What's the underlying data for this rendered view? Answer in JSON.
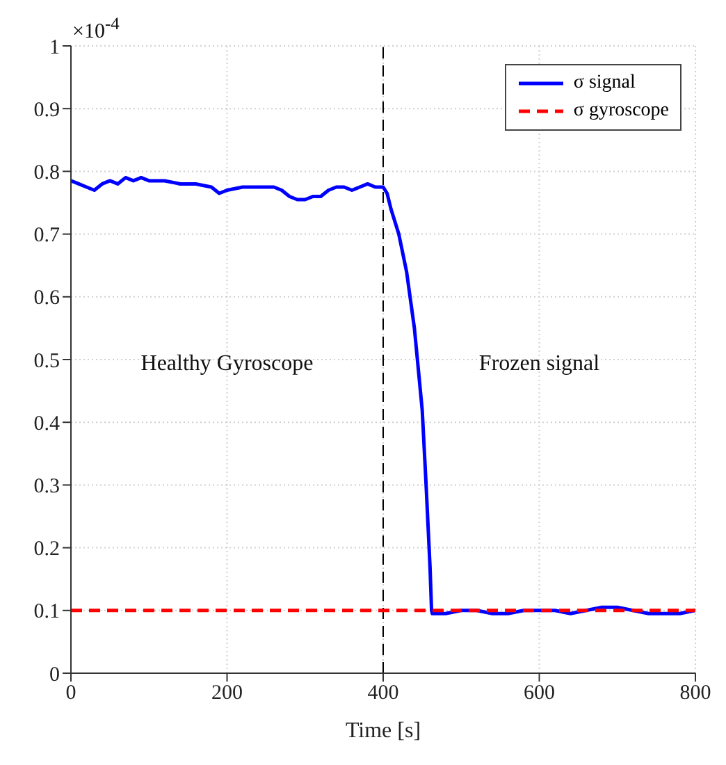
{
  "chart_data": {
    "type": "line",
    "xlabel": "Time [s]",
    "xlim": [
      0,
      800
    ],
    "xticks": [
      0,
      200,
      400,
      600,
      800
    ],
    "ylim": [
      0,
      1
    ],
    "yticks": [
      0,
      0.1,
      0.2,
      0.3,
      0.4,
      0.5,
      0.6,
      0.7,
      0.8,
      0.9,
      1
    ],
    "grid": true,
    "legend": "top right",
    "marker": "none",
    "annotations": [
      "×10$^{-4}$",
      "Healthy Gyroscope",
      "Frozen signal"
    ],
    "ref_lines": [
      {
        "axis": "x",
        "value": 400,
        "color": "#000000",
        "line_style": "dashed"
      }
    ],
    "series": [
      {
        "name": "σ signal",
        "color": "#0000ff",
        "line_style": "solid",
        "x": [
          0,
          10,
          20,
          30,
          40,
          50,
          60,
          70,
          80,
          90,
          100,
          120,
          140,
          160,
          180,
          190,
          200,
          220,
          240,
          260,
          270,
          280,
          290,
          300,
          310,
          320,
          330,
          340,
          350,
          360,
          370,
          380,
          390,
          400,
          405,
          410,
          420,
          430,
          440,
          450,
          455,
          460,
          462,
          463,
          480,
          500,
          520,
          540,
          560,
          580,
          600,
          620,
          640,
          660,
          680,
          700,
          720,
          740,
          760,
          780,
          800
        ],
        "values": [
          0.785,
          0.78,
          0.775,
          0.77,
          0.78,
          0.785,
          0.78,
          0.79,
          0.785,
          0.79,
          0.785,
          0.785,
          0.78,
          0.78,
          0.775,
          0.765,
          0.77,
          0.775,
          0.775,
          0.775,
          0.77,
          0.76,
          0.755,
          0.755,
          0.76,
          0.76,
          0.77,
          0.775,
          0.775,
          0.77,
          0.775,
          0.78,
          0.775,
          0.775,
          0.765,
          0.74,
          0.7,
          0.64,
          0.55,
          0.42,
          0.3,
          0.17,
          0.1,
          0.095,
          0.095,
          0.1,
          0.1,
          0.095,
          0.095,
          0.1,
          0.1,
          0.1,
          0.095,
          0.1,
          0.105,
          0.105,
          0.1,
          0.095,
          0.095,
          0.095,
          0.1
        ]
      },
      {
        "name": "σ gyroscope",
        "color": "#ff0000",
        "line_style": "dashed",
        "x": [
          0,
          800
        ],
        "values": [
          0.1,
          0.1
        ]
      }
    ]
  }
}
